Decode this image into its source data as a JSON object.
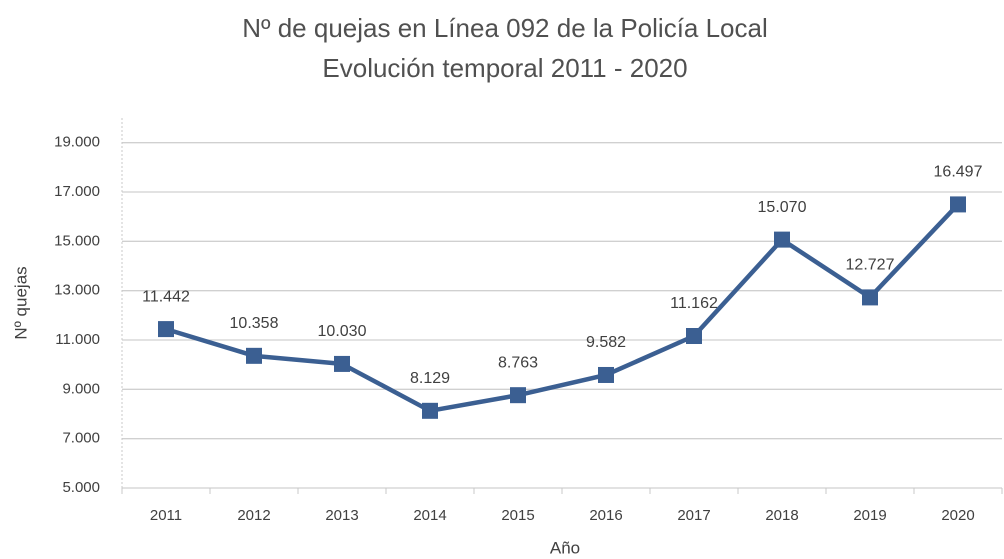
{
  "chart_data": {
    "type": "line",
    "title": [
      "Nº de quejas en Línea 092 de la Policía Local",
      "Evolución temporal 2011 - 2020"
    ],
    "x_label": "Año",
    "y_label": "Nº quejas",
    "categories": [
      "2011",
      "2012",
      "2013",
      "2014",
      "2015",
      "2016",
      "2017",
      "2018",
      "2019",
      "2020"
    ],
    "series": [
      {
        "color": "#3b5f92",
        "values": [
          11442,
          10358,
          10030,
          8129,
          8763,
          9582,
          11162,
          15070,
          12727,
          16497
        ],
        "value_labels": [
          "11.442",
          "10.358",
          "10.030",
          "8.129",
          "8.763",
          "9.582",
          "11.162",
          "15.070",
          "12.727",
          "16.497"
        ]
      }
    ],
    "ylim": [
      5000,
      20000
    ],
    "yticks": [
      {
        "value": 5000,
        "label": "5.000"
      },
      {
        "value": 7000,
        "label": "7.000"
      },
      {
        "value": 9000,
        "label": "9.000"
      },
      {
        "value": 11000,
        "label": "11.000"
      },
      {
        "value": 13000,
        "label": "13.000"
      },
      {
        "value": 15000,
        "label": "15.000"
      },
      {
        "value": 17000,
        "label": "17.000"
      },
      {
        "value": 19000,
        "label": "19.000"
      }
    ],
    "grid": true
  }
}
